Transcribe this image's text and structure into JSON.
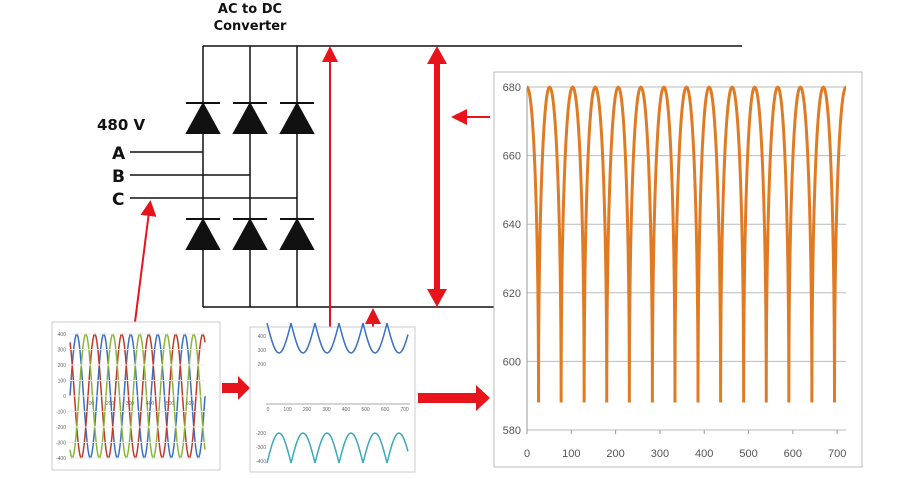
{
  "header": {
    "title_line1": "AC to DC",
    "title_line2": "Converter"
  },
  "input": {
    "voltage": "480 V",
    "phases": [
      "A",
      "B",
      "C"
    ]
  },
  "phase_chart": {
    "yticks": [
      400,
      300,
      200,
      100,
      0,
      -100,
      -200,
      -300,
      -400
    ],
    "xticks": [
      100,
      200,
      300,
      400,
      500,
      600
    ]
  },
  "rectified_chart": {
    "yticks": [
      400,
      300,
      200,
      -200,
      -300,
      -400
    ],
    "xticks": [
      0,
      100,
      200,
      300,
      400,
      500,
      600,
      700
    ]
  },
  "chart_data": {
    "type": "line",
    "xlim": [
      0,
      720
    ],
    "ylim": [
      580,
      680
    ],
    "xticks": [
      0,
      100,
      200,
      300,
      400,
      500,
      600,
      700
    ],
    "yticks": [
      580,
      600,
      620,
      640,
      660,
      680
    ],
    "grid": true,
    "x": [
      0,
      26,
      51,
      77,
      103,
      129,
      154,
      180,
      206,
      231,
      257,
      283,
      309,
      334,
      360,
      386,
      411,
      437,
      463,
      489,
      514,
      540,
      566,
      591,
      617,
      643,
      669,
      694,
      720
    ],
    "series": [
      {
        "color": "#e07b24",
        "values": [
          680,
          588,
          680,
          588,
          680,
          588,
          680,
          588,
          680,
          588,
          680,
          588,
          680,
          588,
          680,
          588,
          680,
          588,
          680,
          588,
          680,
          588,
          680,
          588,
          680,
          588,
          680,
          588,
          680
        ]
      }
    ]
  }
}
